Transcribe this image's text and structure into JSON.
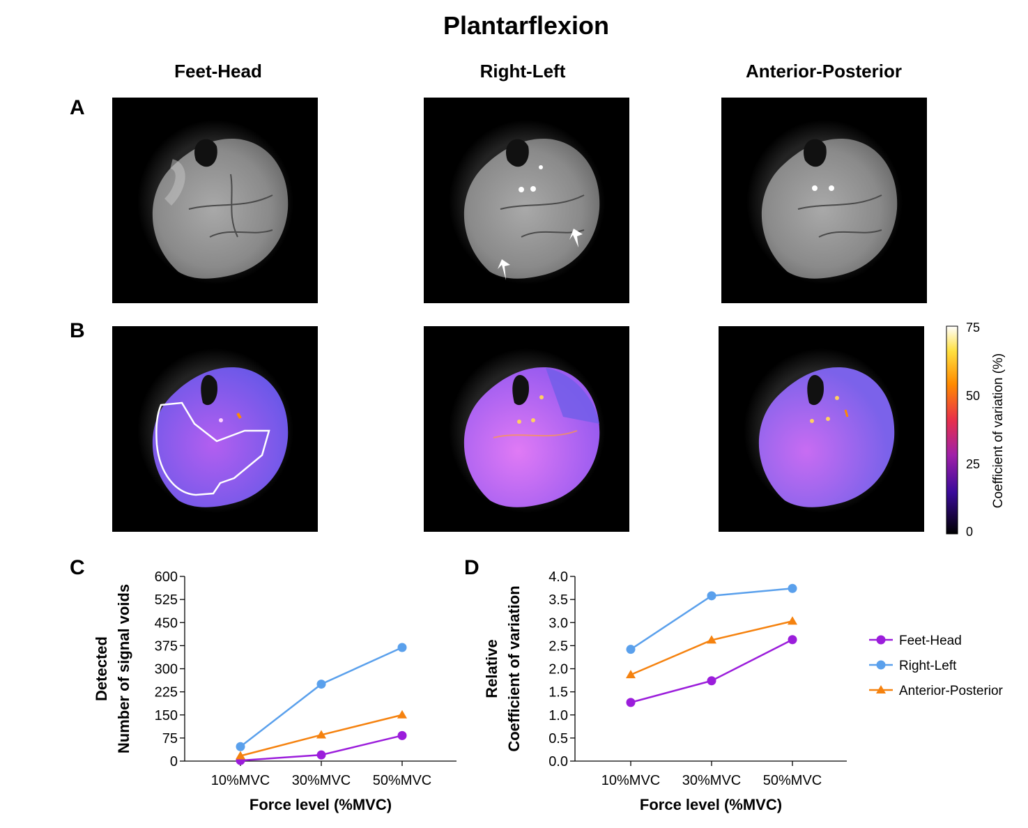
{
  "figure": {
    "title": "Plantarflexion",
    "columns": [
      "Feet-Head",
      "Right-Left",
      "Anterior-Posterior"
    ],
    "panel_labels": [
      "A",
      "B",
      "C",
      "D"
    ],
    "colorbar": {
      "label": "Coefficient of variation (%)",
      "ticks": [
        "75",
        "50",
        "25",
        "0"
      ],
      "min": 0,
      "max": 75
    }
  },
  "chart_data": [
    {
      "panel": "C",
      "type": "line",
      "categories": [
        "10%MVC",
        "30%MVC",
        "50%MVC"
      ],
      "xlabel": "Force level (%MVC)",
      "ylabel_line1": "Detected",
      "ylabel_line2": "Number of signal voids",
      "ylim": [
        0,
        600
      ],
      "yticks": [
        "0",
        "75",
        "150",
        "225",
        "300",
        "375",
        "450",
        "525",
        "600"
      ],
      "series": [
        {
          "name": "Feet-Head",
          "color": "#9b1ddb",
          "marker": "circle",
          "values": [
            2,
            20,
            83
          ]
        },
        {
          "name": "Right-Left",
          "color": "#5aa0ec",
          "marker": "circle",
          "values": [
            47,
            250,
            369
          ]
        },
        {
          "name": "Anterior-Posterior",
          "color": "#f5820f",
          "marker": "triangle",
          "values": [
            17,
            85,
            150
          ]
        }
      ]
    },
    {
      "panel": "D",
      "type": "line",
      "categories": [
        "10%MVC",
        "30%MVC",
        "50%MVC"
      ],
      "xlabel": "Force level (%MVC)",
      "ylabel_line1": "Relative",
      "ylabel_line2": "Coefficient of variation",
      "ylim": [
        0,
        4
      ],
      "yticks": [
        "0.0",
        "0.5",
        "1.0",
        "1.5",
        "2.0",
        "2.5",
        "3.0",
        "3.5",
        "4.0"
      ],
      "series": [
        {
          "name": "Feet-Head",
          "color": "#9b1ddb",
          "marker": "circle",
          "values": [
            1.27,
            1.74,
            2.63
          ]
        },
        {
          "name": "Right-Left",
          "color": "#5aa0ec",
          "marker": "circle",
          "values": [
            2.42,
            3.58,
            3.74
          ]
        },
        {
          "name": "Anterior-Posterior",
          "color": "#f5820f",
          "marker": "triangle",
          "values": [
            1.87,
            2.62,
            3.03
          ]
        }
      ]
    }
  ]
}
